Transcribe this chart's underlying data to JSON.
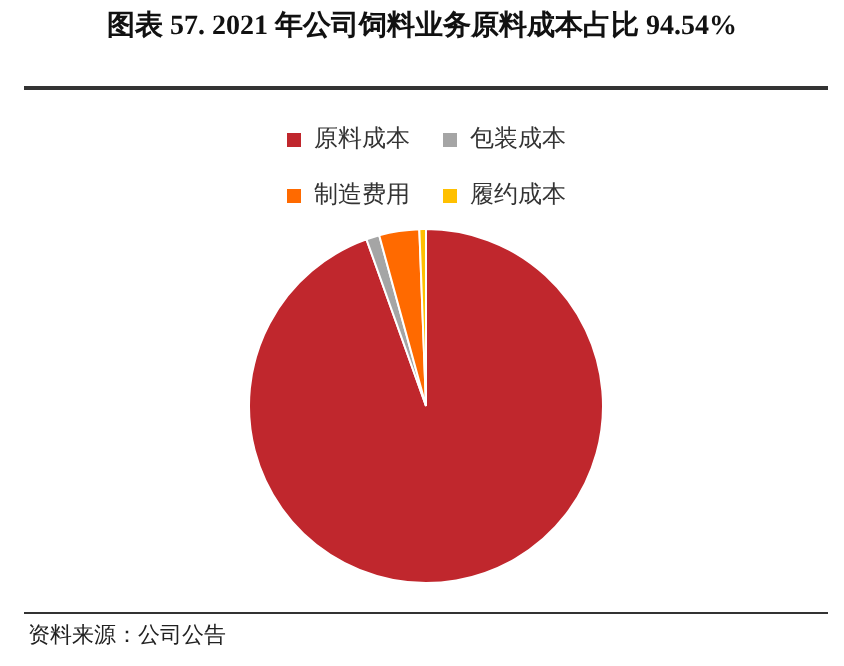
{
  "chart_data": {
    "type": "pie",
    "title": "图表 57. 2021 年公司饲料业务原料成本占比 94.54%",
    "categories": [
      "原料成本",
      "包装成本",
      "制造费用",
      "履约成本"
    ],
    "values": [
      94.54,
      1.2,
      3.66,
      0.6
    ],
    "colors": [
      "#c0272d",
      "#a5a5a5",
      "#ff6a00",
      "#ffc000"
    ],
    "legend": "top",
    "annotations": [
      "资料来源：公司公告"
    ]
  }
}
